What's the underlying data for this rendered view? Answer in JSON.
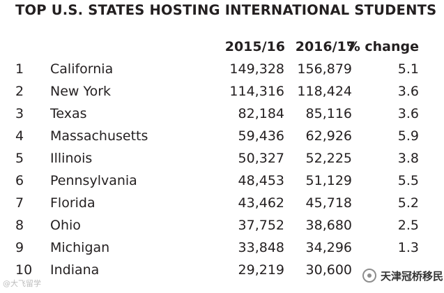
{
  "chart_data": {
    "type": "table",
    "title": "TOP U.S. STATES HOSTING INTERNATIONAL STUDENTS",
    "columns": [
      "",
      "",
      "2015/16",
      "2016/17",
      "% change"
    ],
    "rows": [
      {
        "rank": "1",
        "state": "California",
        "y2015_16": "149,328",
        "y2016_17": "156,879",
        "pct_change": "5.1"
      },
      {
        "rank": "2",
        "state": "New York",
        "y2015_16": "114,316",
        "y2016_17": "118,424",
        "pct_change": "3.6"
      },
      {
        "rank": "3",
        "state": "Texas",
        "y2015_16": "82,184",
        "y2016_17": "85,116",
        "pct_change": "3.6"
      },
      {
        "rank": "4",
        "state": "Massachusetts",
        "y2015_16": "59,436",
        "y2016_17": "62,926",
        "pct_change": "5.9"
      },
      {
        "rank": "5",
        "state": "Illinois",
        "y2015_16": "50,327",
        "y2016_17": "52,225",
        "pct_change": "3.8"
      },
      {
        "rank": "6",
        "state": "Pennsylvania",
        "y2015_16": "48,453",
        "y2016_17": "51,129",
        "pct_change": "5.5"
      },
      {
        "rank": "7",
        "state": "Florida",
        "y2015_16": "43,462",
        "y2016_17": "45,718",
        "pct_change": "5.2"
      },
      {
        "rank": "8",
        "state": "Ohio",
        "y2015_16": "37,752",
        "y2016_17": "38,680",
        "pct_change": "2.5"
      },
      {
        "rank": "9",
        "state": "Michigan",
        "y2015_16": "33,848",
        "y2016_17": "34,296",
        "pct_change": "1.3"
      },
      {
        "rank": "10",
        "state": "Indiana",
        "y2015_16": "29,219",
        "y2016_17": "30,600",
        "pct_change": ""
      }
    ]
  },
  "watermarks": {
    "left_text": "@大飞留学",
    "right_text": "天津冠桥移民",
    "icon": "wechat-official-account-icon"
  },
  "colors": {
    "text": "#231f20",
    "background": "#ffffff"
  }
}
